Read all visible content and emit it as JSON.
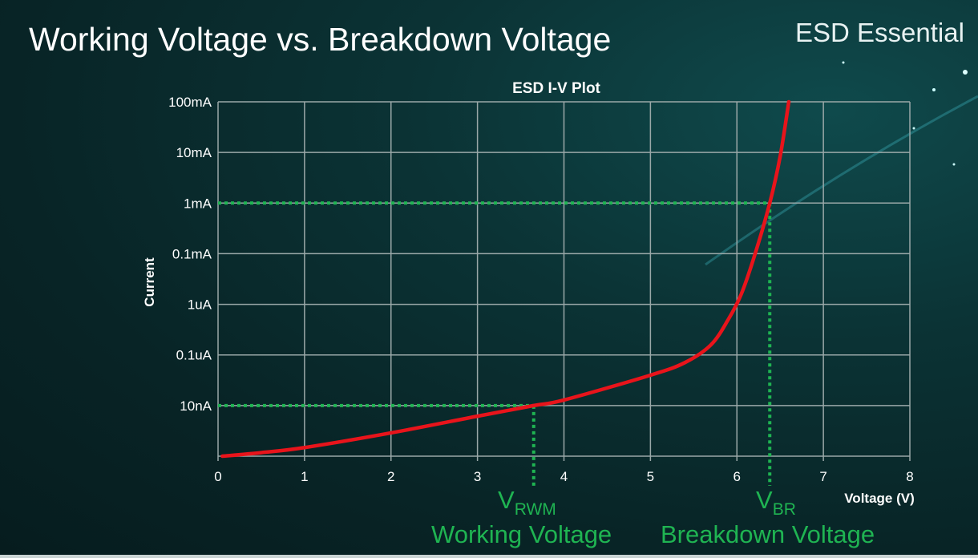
{
  "slide": {
    "title": "Working Voltage vs. Breakdown Voltage",
    "brand": "ESD Essential"
  },
  "chart_data": {
    "type": "line",
    "title": "ESD I-V Plot",
    "xlabel": "Voltage (V)",
    "ylabel": "Current",
    "xlim": [
      0,
      8
    ],
    "x_ticks": [
      "0",
      "1",
      "2",
      "3",
      "4",
      "5",
      "6",
      "7",
      "8"
    ],
    "y_scale": "log (grid levels, as labelled)",
    "y_ticks": [
      "",
      "10nA",
      "0.1uA",
      "1uA",
      "0.1mA",
      "1mA",
      "10mA",
      "100mA"
    ],
    "grid": true,
    "series": [
      {
        "color": "#e8141b",
        "points_x": [
          0.05,
          0.5,
          1,
          2,
          3,
          3.65,
          4,
          5,
          5.4,
          5.7,
          5.9,
          6.05,
          6.2,
          6.38,
          6.5,
          6.6
        ],
        "points_y_level": [
          0,
          0.07,
          0.17,
          0.46,
          0.79,
          1.0,
          1.11,
          1.6,
          1.85,
          2.2,
          2.7,
          3.2,
          3.94,
          5.0,
          5.92,
          7.0
        ]
      }
    ],
    "markers": [
      {
        "x": 3.65,
        "y_level": 1,
        "y_label": "10nA",
        "symbol": "V",
        "subscript": "RWM",
        "caption": "Working Voltage"
      },
      {
        "x": 6.38,
        "y_level": 5,
        "y_label": "1mA",
        "symbol": "V",
        "subscript": "BR",
        "caption": "Breakdown Voltage"
      }
    ],
    "marker_color": "#1fb452"
  }
}
